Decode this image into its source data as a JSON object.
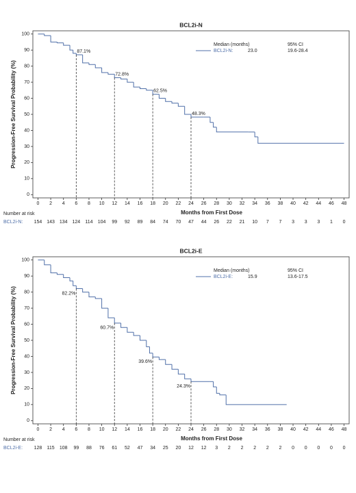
{
  "chart_data": [
    {
      "type": "step",
      "title": "BCL2i-N",
      "x_label": "Months from First Dose",
      "y_label": "Progression-Free Survival Probability (%)",
      "xlim": [
        -0.8,
        48.8
      ],
      "ylim": [
        -2,
        102
      ],
      "xticks": [
        0,
        2,
        4,
        6,
        8,
        10,
        12,
        14,
        16,
        18,
        20,
        22,
        24,
        26,
        28,
        30,
        32,
        34,
        36,
        38,
        40,
        42,
        44,
        46,
        48
      ],
      "yticks": [
        0,
        10,
        20,
        30,
        40,
        50,
        60,
        70,
        80,
        90,
        100
      ],
      "series": [
        {
          "name": "BCL2i-N:",
          "color": "#4f6fa8",
          "x": [
            0,
            1,
            2,
            3,
            4,
            5,
            5.5,
            6,
            7,
            8,
            9,
            10,
            11,
            12,
            13,
            14,
            15,
            16,
            17,
            18,
            19,
            20,
            21,
            22,
            23,
            24,
            26,
            27,
            27.5,
            28,
            33,
            34,
            34.5,
            48
          ],
          "values": [
            100,
            99,
            95,
            94.5,
            93,
            90,
            88,
            87.1,
            82,
            81,
            79,
            76,
            75,
            72.8,
            72,
            70,
            67,
            66,
            65,
            62.5,
            60,
            58,
            57,
            55,
            50,
            48.3,
            48.3,
            45,
            42,
            39,
            39,
            36,
            32,
            32
          ]
        }
      ],
      "legend": {
        "header": [
          "Median (months)",
          "95% CI"
        ],
        "median": "23.0",
        "ci": "19.6-28.4"
      },
      "annotations": [
        {
          "x": 6,
          "y": 87.1,
          "label": "87.1%"
        },
        {
          "x": 12,
          "y": 72.8,
          "label": "72.8%"
        },
        {
          "x": 18,
          "y": 62.5,
          "label": "62.5%"
        },
        {
          "x": 24,
          "y": 48.3,
          "label": "48.3%"
        }
      ],
      "risk": {
        "header": "Number at risk",
        "name": "BCL2i-N:",
        "values": [
          154,
          143,
          134,
          124,
          114,
          104,
          99,
          92,
          89,
          84,
          74,
          70,
          47,
          44,
          26,
          22,
          21,
          10,
          7,
          7,
          3,
          3,
          3,
          1,
          0
        ]
      }
    },
    {
      "type": "step",
      "title": "BCL2i-E",
      "x_label": "Months from First Dose",
      "y_label": "Progression-Free Survival Probability (%)",
      "xlim": [
        -0.8,
        48.8
      ],
      "ylim": [
        -2,
        102
      ],
      "xticks": [
        0,
        2,
        4,
        6,
        8,
        10,
        12,
        14,
        16,
        18,
        20,
        22,
        24,
        26,
        28,
        30,
        32,
        34,
        36,
        38,
        40,
        42,
        44,
        46,
        48
      ],
      "yticks": [
        0,
        10,
        20,
        30,
        40,
        50,
        60,
        70,
        80,
        90,
        100
      ],
      "series": [
        {
          "name": "BCL2i-E:",
          "color": "#4f6fa8",
          "x": [
            0,
            1,
            2,
            3,
            4,
            5,
            5.5,
            6,
            7,
            8,
            9,
            10,
            11,
            12,
            13,
            14,
            15,
            16,
            17,
            17.5,
            18,
            19,
            20,
            21,
            22,
            23,
            24,
            27,
            27.5,
            28,
            28.5,
            29.5,
            39
          ],
          "values": [
            100,
            97,
            92,
            91,
            89,
            87,
            84,
            82.2,
            80,
            77,
            76,
            70,
            64,
            60.7,
            58,
            55,
            53,
            50,
            46,
            42,
            39.6,
            38,
            35,
            32,
            29,
            26,
            24.3,
            24.3,
            21,
            17,
            16,
            10,
            10
          ]
        }
      ],
      "legend": {
        "header": [
          "Median (months)",
          "95% CI"
        ],
        "median": "15.9",
        "ci": "13.6-17.5"
      },
      "annotations": [
        {
          "x": 6,
          "y": 82.2,
          "label": "82.2%"
        },
        {
          "x": 12,
          "y": 60.7,
          "label": "60.7%"
        },
        {
          "x": 18,
          "y": 39.6,
          "label": "39.6%"
        },
        {
          "x": 24,
          "y": 24.3,
          "label": "24.3%"
        }
      ],
      "risk": {
        "header": "Number at risk",
        "name": "BCL2i-E:",
        "values": [
          128,
          115,
          108,
          99,
          88,
          76,
          61,
          52,
          47,
          34,
          25,
          20,
          12,
          12,
          3,
          2,
          2,
          2,
          2,
          2,
          0,
          0,
          0,
          0,
          0
        ]
      }
    }
  ]
}
